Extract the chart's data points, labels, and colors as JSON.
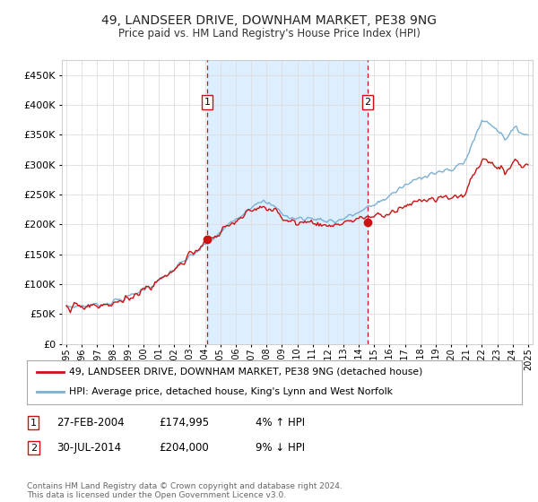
{
  "title": "49, LANDSEER DRIVE, DOWNHAM MARKET, PE38 9NG",
  "subtitle": "Price paid vs. HM Land Registry's House Price Index (HPI)",
  "bg_color": "#ffffff",
  "plot_bg_color": "#ffffff",
  "grid_color": "#dddddd",
  "shade_color": "#ddeeff",
  "hpi_color": "#7ab0d4",
  "price_color": "#cc1111",
  "sale1": {
    "date_num": 2004.15,
    "price": 174995,
    "label": "1"
  },
  "sale2": {
    "date_num": 2014.58,
    "price": 204000,
    "label": "2"
  },
  "legend_line1": "49, LANDSEER DRIVE, DOWNHAM MARKET, PE38 9NG (detached house)",
  "legend_line2": "HPI: Average price, detached house, King's Lynn and West Norfolk",
  "table_row1": [
    "1",
    "27-FEB-2004",
    "£174,995",
    "4% ↑ HPI"
  ],
  "table_row2": [
    "2",
    "30-JUL-2014",
    "£204,000",
    "9% ↓ HPI"
  ],
  "footer": "Contains HM Land Registry data © Crown copyright and database right 2024.\nThis data is licensed under the Open Government Licence v3.0.",
  "ylim": [
    0,
    475000
  ],
  "xlim_start": 1994.7,
  "xlim_end": 2025.3
}
